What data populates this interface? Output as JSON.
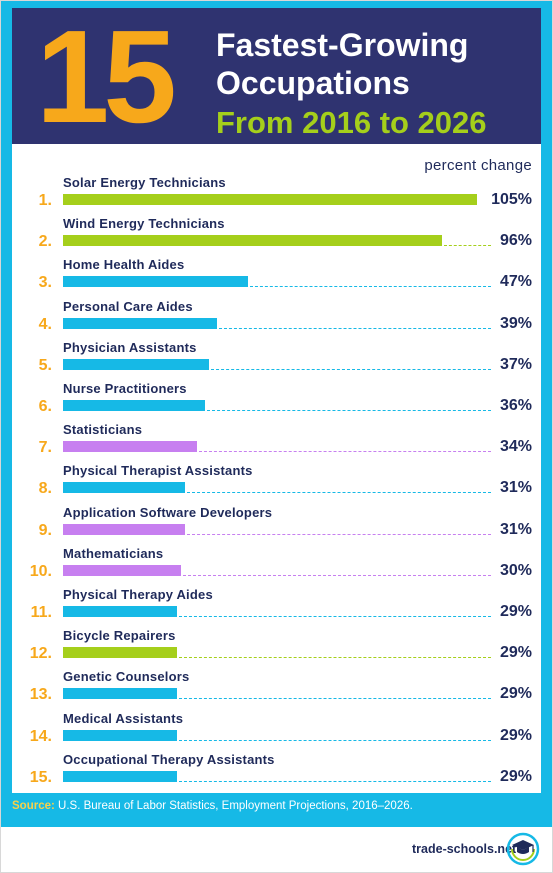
{
  "header": {
    "number": "15",
    "title_line1": "Fastest-Growing",
    "title_line2": "Occupations",
    "title_line3": "From 2016 to 2026"
  },
  "chart_data": {
    "type": "bar",
    "title": "15 Fastest-Growing Occupations From 2016 to 2026",
    "value_label": "percent change",
    "xlim": [
      0,
      105
    ],
    "categories": [
      "Solar Energy Technicians",
      "Wind Energy Technicians",
      "Home Health Aides",
      "Personal Care Aides",
      "Physician Assistants",
      "Nurse Practitioners",
      "Statisticians",
      "Physical Therapist Assistants",
      "Application Software Developers",
      "Mathematicians",
      "Physical Therapy Aides",
      "Bicycle Repairers",
      "Genetic Counselors",
      "Medical Assistants",
      "Occupational Therapy Assistants"
    ],
    "ranks": [
      "1.",
      "2.",
      "3.",
      "4.",
      "5.",
      "6.",
      "7.",
      "8.",
      "9.",
      "10.",
      "11.",
      "12.",
      "13.",
      "14.",
      "15."
    ],
    "values": [
      105,
      96,
      47,
      39,
      37,
      36,
      34,
      31,
      31,
      30,
      29,
      29,
      29,
      29,
      29
    ],
    "value_labels": [
      "105%",
      "96%",
      "47%",
      "39%",
      "37%",
      "36%",
      "34%",
      "31%",
      "31%",
      "30%",
      "29%",
      "29%",
      "29%",
      "29%",
      "29%"
    ],
    "bar_colors": [
      "#a5cf1b",
      "#a5cf1b",
      "#16b9e6",
      "#16b9e6",
      "#16b9e6",
      "#16b9e6",
      "#c77ff0",
      "#16b9e6",
      "#c77ff0",
      "#c77ff0",
      "#16b9e6",
      "#a5cf1b",
      "#16b9e6",
      "#16b9e6",
      "#16b9e6"
    ]
  },
  "footer": {
    "source_label": "Source:",
    "source_text": " U.S. Bureau of Labor Statistics, Employment Projections, 2016–2026.",
    "site": "trade-schools.net"
  },
  "colors": {
    "navy": "#2f3370",
    "orange": "#f7a81b",
    "green": "#a5cf1b",
    "cyan": "#16b9e6",
    "purple": "#c77ff0",
    "text": "#1f2a5a"
  }
}
